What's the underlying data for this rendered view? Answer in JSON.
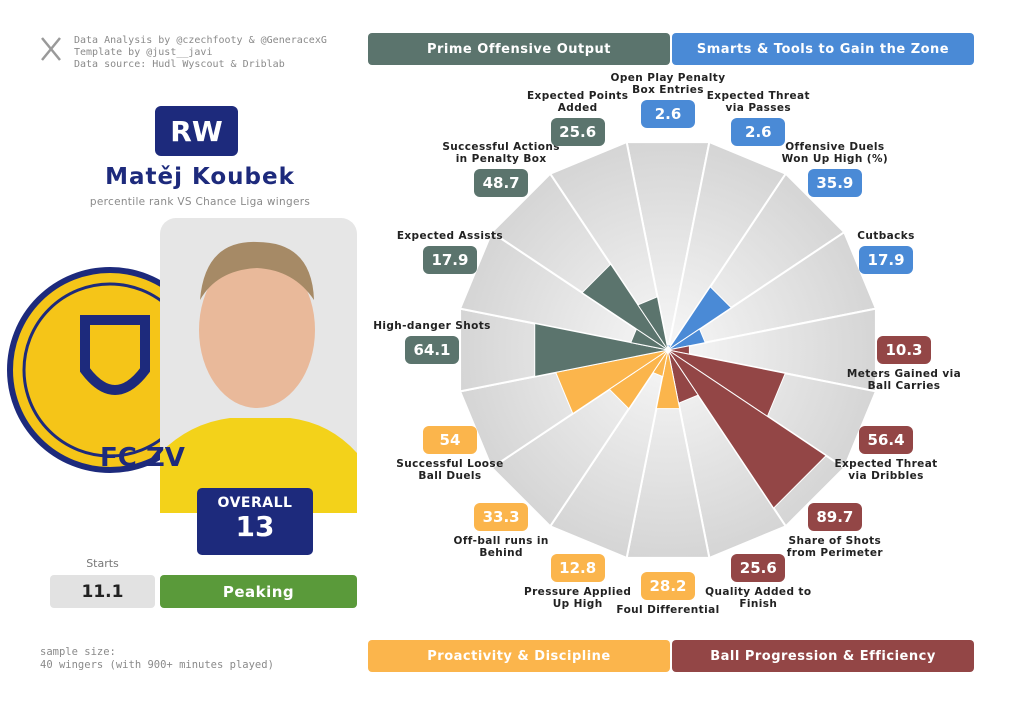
{
  "header": {
    "credits": [
      "Data Analysis by @czechfooty & @GeneracexG",
      "Template by @just__javi",
      "Data source: Hudl Wyscout & Driblab"
    ]
  },
  "player": {
    "position": "RW",
    "name": "Matěj Koubek",
    "subtitle": "percentile rank VS Chance Liga wingers",
    "badge_text": "FC ZV",
    "overall_label": "OVERALL",
    "overall": 13,
    "starts_label": "Starts",
    "starts": 11.1,
    "status": "Peaking"
  },
  "sections": [
    {
      "name": "Prime Offensive Output",
      "color": "#5b746d"
    },
    {
      "name": "Smarts & Tools to Gain the Zone",
      "color": "#4a8ad6"
    },
    {
      "name": "Proactivity & Discipline",
      "color": "#fbb54c"
    },
    {
      "name": "Ball Progression & Efficiency",
      "color": "#934646"
    }
  ],
  "footer": {
    "sample": [
      "sample size:",
      "40 wingers (with 900+ minutes played)"
    ]
  },
  "chart_data": {
    "type": "pizza",
    "categories": [
      "Open Play Penalty Box Entries",
      "Expected Threat via Passes",
      "Offensive Duels Won Up High (%)",
      "Cutbacks",
      "Meters Gained via Ball Carries",
      "Expected Threat via Dribbles",
      "Share of Shots from Perimeter",
      "Quality Added to Finish",
      "Foul Differential",
      "Pressure Applied Up High",
      "Off-ball runs in Behind",
      "Successful Loose Ball Duels",
      "High-danger Shots",
      "Expected Assists",
      "Successful Actions in Penalty Box",
      "Expected Points Added"
    ],
    "values": [
      2.6,
      2.6,
      35.9,
      17.9,
      10.3,
      56.4,
      89.7,
      25.6,
      28.2,
      12.8,
      33.3,
      54,
      64.1,
      17.9,
      48.7,
      25.6
    ],
    "colors": [
      "#4a8ad6",
      "#4a8ad6",
      "#4a8ad6",
      "#4a8ad6",
      "#934646",
      "#934646",
      "#934646",
      "#934646",
      "#fbb54c",
      "#fbb54c",
      "#fbb54c",
      "#fbb54c",
      "#5b746d",
      "#5b746d",
      "#5b746d",
      "#5b746d"
    ],
    "rlim": [
      0,
      100
    ]
  }
}
